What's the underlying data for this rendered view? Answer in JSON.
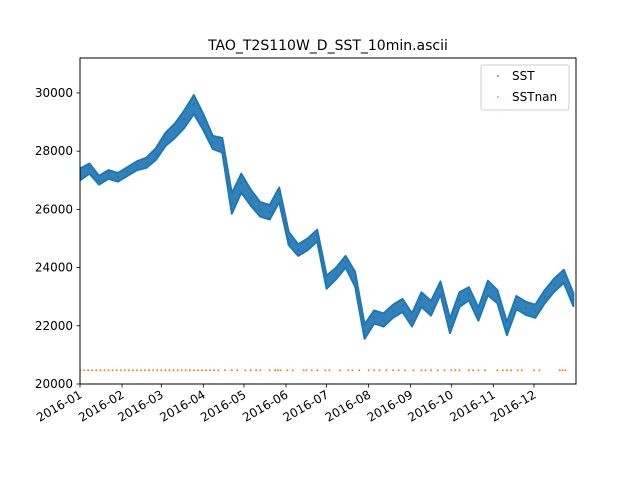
{
  "chart_data": {
    "type": "scatter",
    "title": "TAO_T2S110W_D_SST_10min.ascii",
    "xlabel": "",
    "ylabel": "",
    "x_axis": "date",
    "xlim": [
      "2016-01-01",
      "2016-12-31"
    ],
    "ylim": [
      20000,
      31200
    ],
    "x_ticks": [
      "2016-01",
      "2016-02",
      "2016-03",
      "2016-04",
      "2016-05",
      "2016-06",
      "2016-07",
      "2016-08",
      "2016-09",
      "2016-10",
      "2016-11",
      "2016-12"
    ],
    "y_ticks": [
      20000,
      22000,
      24000,
      26000,
      28000,
      30000
    ],
    "grid": false,
    "legend_position": "top-right",
    "series": [
      {
        "name": "SST",
        "color": "#1f77b4",
        "marker": "dot",
        "x": [
          "2016-01-01",
          "2016-01-08",
          "2016-01-15",
          "2016-01-22",
          "2016-01-29",
          "2016-02-05",
          "2016-02-12",
          "2016-02-19",
          "2016-02-26",
          "2016-03-04",
          "2016-03-11",
          "2016-03-18",
          "2016-03-25",
          "2016-04-01",
          "2016-04-08",
          "2016-04-15",
          "2016-04-22",
          "2016-04-29",
          "2016-05-06",
          "2016-05-13",
          "2016-05-20",
          "2016-05-27",
          "2016-06-03",
          "2016-06-10",
          "2016-06-17",
          "2016-06-24",
          "2016-07-01",
          "2016-07-08",
          "2016-07-15",
          "2016-07-22",
          "2016-07-29",
          "2016-08-05",
          "2016-08-12",
          "2016-08-19",
          "2016-08-26",
          "2016-09-02",
          "2016-09-09",
          "2016-09-16",
          "2016-09-23",
          "2016-09-30",
          "2016-10-07",
          "2016-10-14",
          "2016-10-21",
          "2016-10-28",
          "2016-11-04",
          "2016-11-11",
          "2016-11-18",
          "2016-11-25",
          "2016-12-02",
          "2016-12-09",
          "2016-12-16",
          "2016-12-23",
          "2016-12-30"
        ],
        "y": [
          27200,
          27400,
          27000,
          27200,
          27100,
          27300,
          27500,
          27600,
          27900,
          28400,
          28700,
          29100,
          29600,
          29000,
          28300,
          28200,
          26200,
          26900,
          26400,
          26000,
          25900,
          26500,
          25000,
          24600,
          24800,
          25100,
          23500,
          23800,
          24200,
          23600,
          21800,
          22300,
          22200,
          22500,
          22700,
          22200,
          22900,
          22600,
          23300,
          22000,
          22900,
          23100,
          22400,
          23300,
          23000,
          21900,
          22800,
          22600,
          22500,
          23000,
          23400,
          23700,
          22900
        ],
        "band": [
          400,
          350,
          300,
          300,
          300,
          300,
          300,
          350,
          400,
          450,
          500,
          600,
          650,
          550,
          450,
          500,
          700,
          650,
          550,
          500,
          500,
          500,
          450,
          400,
          400,
          400,
          450,
          400,
          400,
          500,
          500,
          450,
          450,
          450,
          450,
          450,
          500,
          500,
          450,
          500,
          500,
          450,
          450,
          500,
          450,
          450,
          450,
          450,
          450,
          450,
          450,
          450,
          450
        ]
      },
      {
        "name": "SSTnan",
        "color": "#ff7f0e",
        "marker": "dot",
        "value": 20470,
        "x": [
          "2016-01-01",
          "2016-01-04",
          "2016-01-07",
          "2016-01-10",
          "2016-01-13",
          "2016-01-16",
          "2016-01-19",
          "2016-01-22",
          "2016-01-25",
          "2016-01-28",
          "2016-01-31",
          "2016-02-03",
          "2016-02-06",
          "2016-02-09",
          "2016-02-12",
          "2016-02-15",
          "2016-02-18",
          "2016-02-21",
          "2016-02-24",
          "2016-02-27",
          "2016-03-01",
          "2016-03-04",
          "2016-03-07",
          "2016-03-10",
          "2016-03-13",
          "2016-03-16",
          "2016-03-19",
          "2016-03-22",
          "2016-03-25",
          "2016-03-28",
          "2016-03-31",
          "2016-04-03",
          "2016-04-06",
          "2016-04-09",
          "2016-04-12",
          "2016-04-17",
          "2016-04-22",
          "2016-04-26",
          "2016-05-02",
          "2016-05-06",
          "2016-05-10",
          "2016-05-13",
          "2016-05-20",
          "2016-05-24",
          "2016-05-26",
          "2016-05-28",
          "2016-06-02",
          "2016-06-06",
          "2016-06-14",
          "2016-06-16",
          "2016-06-20",
          "2016-06-24",
          "2016-06-30",
          "2016-07-03",
          "2016-07-11",
          "2016-07-17",
          "2016-07-20",
          "2016-07-25",
          "2016-08-01",
          "2016-08-05",
          "2016-08-09",
          "2016-08-14",
          "2016-08-19",
          "2016-08-23",
          "2016-08-28",
          "2016-09-03",
          "2016-09-09",
          "2016-09-12",
          "2016-09-16",
          "2016-09-21",
          "2016-09-26",
          "2016-10-01",
          "2016-10-04",
          "2016-10-07",
          "2016-10-14",
          "2016-10-17",
          "2016-10-21",
          "2016-10-26",
          "2016-11-04",
          "2016-11-08",
          "2016-11-11",
          "2016-11-14",
          "2016-11-19",
          "2016-11-22",
          "2016-12-01",
          "2016-12-05",
          "2016-12-20",
          "2016-12-22",
          "2016-12-24"
        ]
      }
    ]
  }
}
